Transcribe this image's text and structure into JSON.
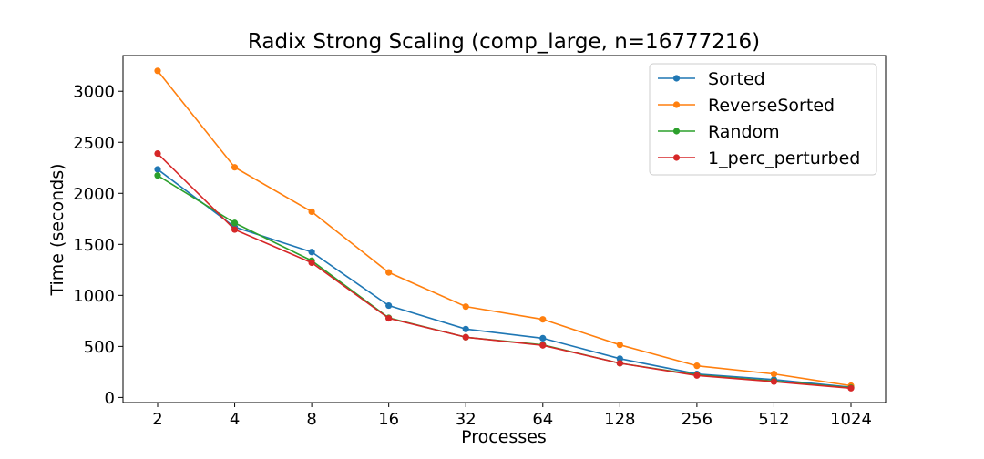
{
  "chart_data": {
    "type": "line",
    "title": "Radix Strong Scaling (comp_large, n=16777216)",
    "xlabel": "Processes",
    "ylabel": "Time (seconds)",
    "categories": [
      "2",
      "4",
      "8",
      "16",
      "32",
      "64",
      "128",
      "256",
      "512",
      "1024"
    ],
    "ylim": [
      -50,
      3350
    ],
    "yticks": [
      0,
      500,
      1000,
      1500,
      2000,
      2500,
      3000
    ],
    "grid": false,
    "legend_position": "top-right",
    "series": [
      {
        "name": "Sorted",
        "color": "#1f77b4",
        "values": [
          2235,
          1670,
          1425,
          900,
          670,
          580,
          380,
          230,
          175,
          100
        ]
      },
      {
        "name": "ReverseSorted",
        "color": "#ff7f0e",
        "values": [
          3200,
          2255,
          1820,
          1225,
          890,
          765,
          515,
          310,
          230,
          115
        ]
      },
      {
        "name": "Random",
        "color": "#2ca02c",
        "values": [
          2175,
          1710,
          1340,
          780,
          590,
          515,
          335,
          220,
          160,
          95
        ]
      },
      {
        "name": "1_perc_perturbed",
        "color": "#d62728",
        "values": [
          2390,
          1645,
          1320,
          775,
          590,
          510,
          335,
          215,
          155,
          90
        ]
      }
    ]
  }
}
